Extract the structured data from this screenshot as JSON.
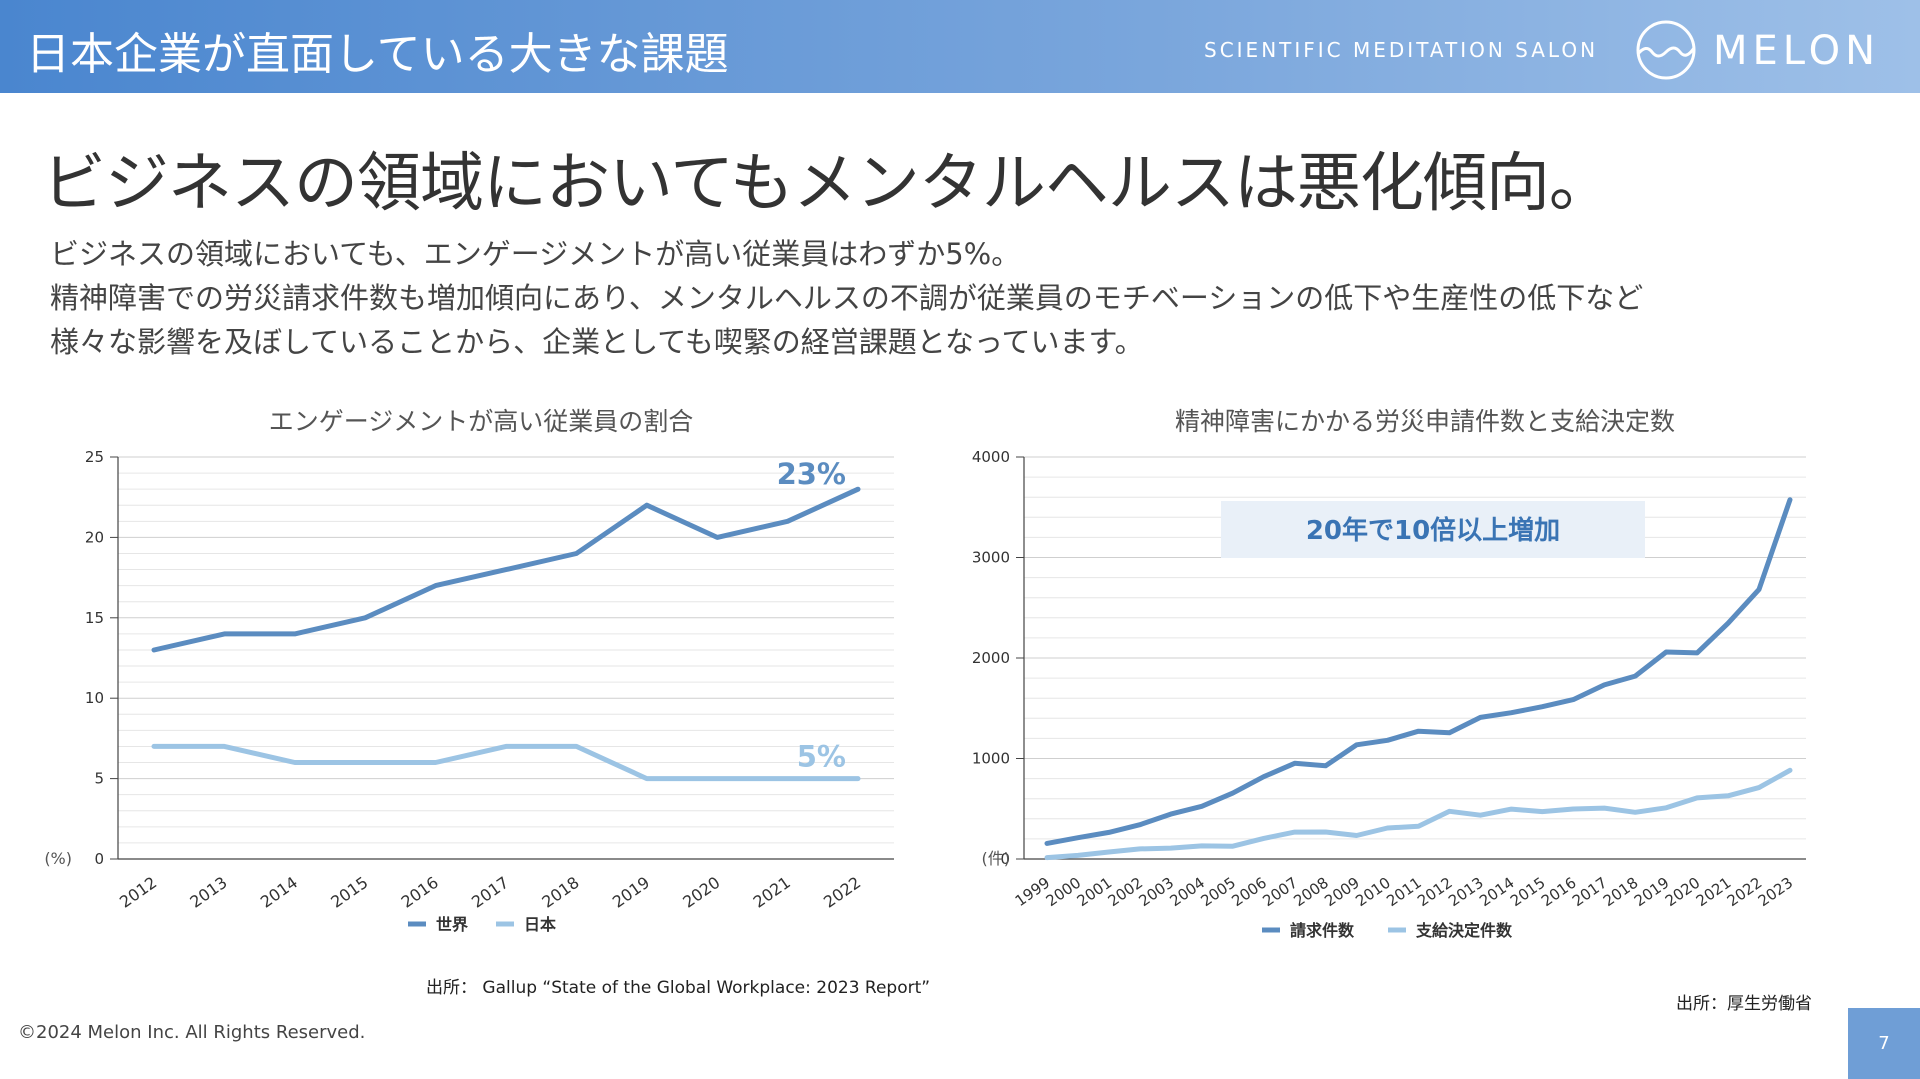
{
  "header": {
    "title": "日本企業が直面している大きな課題",
    "tagline": "SCIENTIFIC MEDITATION SALON",
    "brand": "MELON"
  },
  "headline": "ビジネスの領域においてもメンタルヘルスは悪化傾向。",
  "body": {
    "lines": [
      "ビジネスの領域においても、エンゲージメントが高い従業員はわずか5%。",
      "精神障害での労災請求件数も増加傾向にあり、メンタルヘルスの不調が従業員のモチベーションの低下や生産性の低下など",
      "様々な影響を及ぼしていることから、企業としても喫緊の経営課題となっています。"
    ]
  },
  "colors": {
    "dark_series": "#5b8cc0",
    "light_series": "#9cc4e4",
    "header_bg": "#5a92d4",
    "callout_bg": "#e9f0f8",
    "callout_text": "#3a74b4"
  },
  "chart_data": [
    {
      "type": "line",
      "title": "エンゲージメントが高い従業員の割合",
      "ylabel": "(%)",
      "x": [
        "2012",
        "2013",
        "2014",
        "2015",
        "2016",
        "2017",
        "2018",
        "2019",
        "2020",
        "2021",
        "2022"
      ],
      "ylim": [
        0,
        25
      ],
      "yticks": [
        "0",
        "5",
        "10",
        "15",
        "20",
        "25"
      ],
      "grid": true,
      "legend": "bottom",
      "series": [
        {
          "name": "世界",
          "values": [
            13,
            14,
            14,
            15,
            17,
            18,
            19,
            22,
            20,
            21,
            23
          ],
          "end_label": "23%"
        },
        {
          "name": "日本",
          "values": [
            7,
            7,
            6,
            6,
            6,
            7,
            7,
            5,
            5,
            5,
            5
          ],
          "end_label": "5%"
        }
      ],
      "source": "出所： Gallup “State of the Global Workplace: 2023 Report”"
    },
    {
      "type": "line",
      "title": "精神障害にかかる労災申請件数と支給決定数",
      "ylabel": "(件)",
      "x": [
        "1999",
        "2000",
        "2001",
        "2002",
        "2003",
        "2004",
        "2005",
        "2006",
        "2007",
        "2008",
        "2009",
        "2010",
        "2011",
        "2012",
        "2013",
        "2014",
        "2015",
        "2016",
        "2017",
        "2018",
        "2019",
        "2020",
        "2021",
        "2022",
        "2023"
      ],
      "ylim": [
        0,
        4000
      ],
      "yticks": [
        "0",
        "1000",
        "2000",
        "3000",
        "4000"
      ],
      "grid": true,
      "legend": "bottom",
      "annotation": "20年で10倍以上増加",
      "series": [
        {
          "name": "請求件数",
          "values": [
            155,
            212,
            265,
            341,
            447,
            524,
            656,
            819,
            952,
            927,
            1136,
            1181,
            1272,
            1257,
            1409,
            1456,
            1515,
            1586,
            1732,
            1820,
            2060,
            2051,
            2346,
            2683,
            3575
          ]
        },
        {
          "name": "支給決定件数",
          "values": [
            14,
            36,
            70,
            100,
            108,
            130,
            127,
            205,
            268,
            269,
            234,
            308,
            325,
            475,
            436,
            497,
            472,
            498,
            506,
            465,
            509,
            608,
            629,
            710,
            883
          ]
        }
      ],
      "source": "出所：厚生労働省"
    }
  ],
  "footer": {
    "copyright": "©2024 Melon Inc. All Rights Reserved.",
    "page": "7"
  }
}
